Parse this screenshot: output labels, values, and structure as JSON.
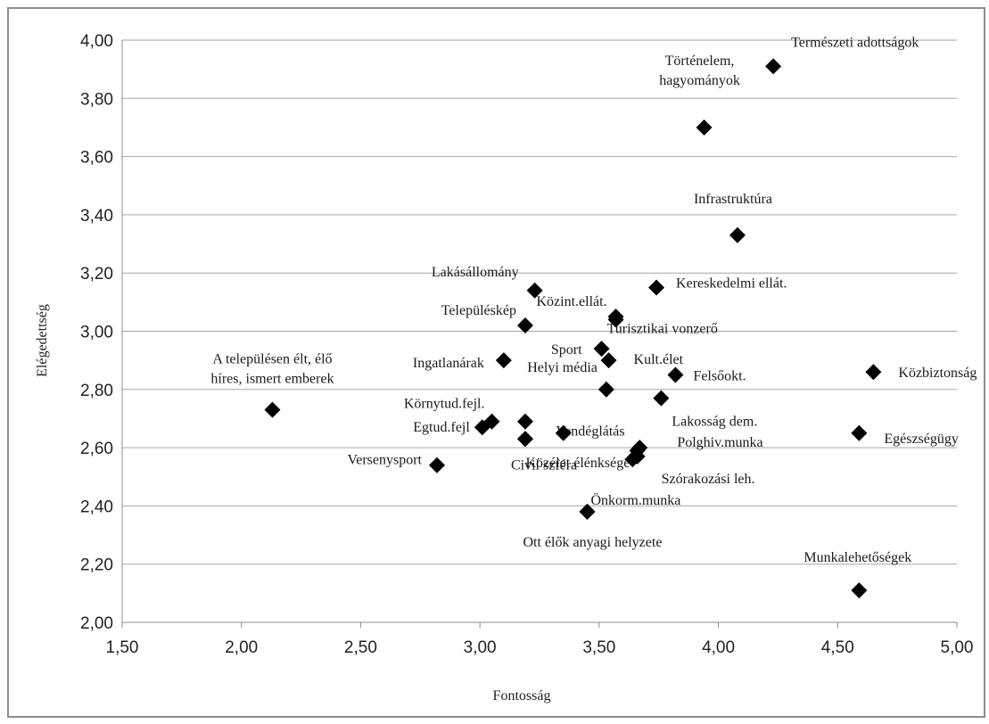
{
  "chart_data": {
    "type": "scatter",
    "title": "",
    "xlabel": "Fontosság",
    "ylabel": "Elégedettség",
    "xlim": [
      1.5,
      5.0
    ],
    "ylim": [
      2.0,
      4.0
    ],
    "x_ticks": [
      "1,50",
      "2,00",
      "2,50",
      "3,00",
      "3,50",
      "4,00",
      "4,50",
      "5,00"
    ],
    "y_ticks": [
      "2,00",
      "2,20",
      "2,40",
      "2,60",
      "2,80",
      "3,00",
      "3,20",
      "3,40",
      "3,60",
      "3,80",
      "4,00"
    ],
    "grid": "horizontal",
    "marker": "diamond",
    "marker_color": "#000000",
    "gridline_color": "#a6a6a6",
    "points": [
      {
        "label": [
          "Természeti adottságok"
        ],
        "x": 4.23,
        "y": 3.91
      },
      {
        "label": [
          "Történelem,",
          "hagyományok"
        ],
        "x": 3.94,
        "y": 3.7
      },
      {
        "label": [
          "Infrastruktúra"
        ],
        "x": 4.08,
        "y": 3.33
      },
      {
        "label": [
          "Lakásállomány"
        ],
        "x": 3.23,
        "y": 3.14
      },
      {
        "label": [
          "Közint.ellát."
        ],
        "x": 3.57,
        "y": 3.05
      },
      {
        "label": [
          "Kereskedelmi ellát."
        ],
        "x": 3.74,
        "y": 3.15
      },
      {
        "label": [
          "Településkép"
        ],
        "x": 3.19,
        "y": 3.02
      },
      {
        "label": [
          "Turisztikai vonzerő"
        ],
        "x": 3.57,
        "y": 3.04
      },
      {
        "label": [
          "A településen élt, élő",
          "híres, ismert emberek"
        ],
        "x": 2.13,
        "y": 2.73
      },
      {
        "label": [
          "Ingatlanárak"
        ],
        "x": 3.1,
        "y": 2.9
      },
      {
        "label": [
          "Sport"
        ],
        "x": 3.51,
        "y": 2.94
      },
      {
        "label": [
          "Kult.élet"
        ],
        "x": 3.54,
        "y": 2.9
      },
      {
        "label": [
          "Felsőokt."
        ],
        "x": 3.82,
        "y": 2.85
      },
      {
        "label": [
          "Közbiztonság"
        ],
        "x": 4.65,
        "y": 2.86
      },
      {
        "label": [
          "Helyi média"
        ],
        "x": 3.53,
        "y": 2.8
      },
      {
        "label": [
          "Lakosság dem."
        ],
        "x": 3.76,
        "y": 2.77
      },
      {
        "label": [
          "Környtud.fejl."
        ],
        "x": 3.05,
        "y": 2.69
      },
      {
        "label": [
          "Egtud.fejl"
        ],
        "x": 3.01,
        "y": 2.67
      },
      {
        "label": [],
        "x": 3.19,
        "y": 2.69
      },
      {
        "label": [],
        "x": 3.19,
        "y": 2.63
      },
      {
        "label": [],
        "x": 3.35,
        "y": 2.65
      },
      {
        "label": [
          "Vendéglátás"
        ],
        "x": 3.66,
        "y": 2.59
      },
      {
        "label": [
          "Egészségügy"
        ],
        "x": 4.59,
        "y": 2.65
      },
      {
        "label": [
          "Polghiv.munka"
        ],
        "x": 3.67,
        "y": 2.6
      },
      {
        "label": [
          "Versenysport"
        ],
        "x": 2.82,
        "y": 2.54
      },
      {
        "label": [
          "Közélet élénksége"
        ],
        "x": 3.64,
        "y": 2.56
      },
      {
        "label": [
          "Szórakozási leh."
        ],
        "x": 3.66,
        "y": 2.57
      },
      {
        "label": [
          "Civil szféra"
        ],
        "x": 3.19,
        "y": 2.63
      },
      {
        "label": [
          "Önkorm.munka"
        ],
        "x": 3.45,
        "y": 2.38
      },
      {
        "label": [
          "Ott élők anyagi helyzete"
        ],
        "x": 3.45,
        "y": 2.38
      },
      {
        "label": [
          "Munkalehetőségek"
        ],
        "x": 4.59,
        "y": 2.11
      }
    ]
  }
}
